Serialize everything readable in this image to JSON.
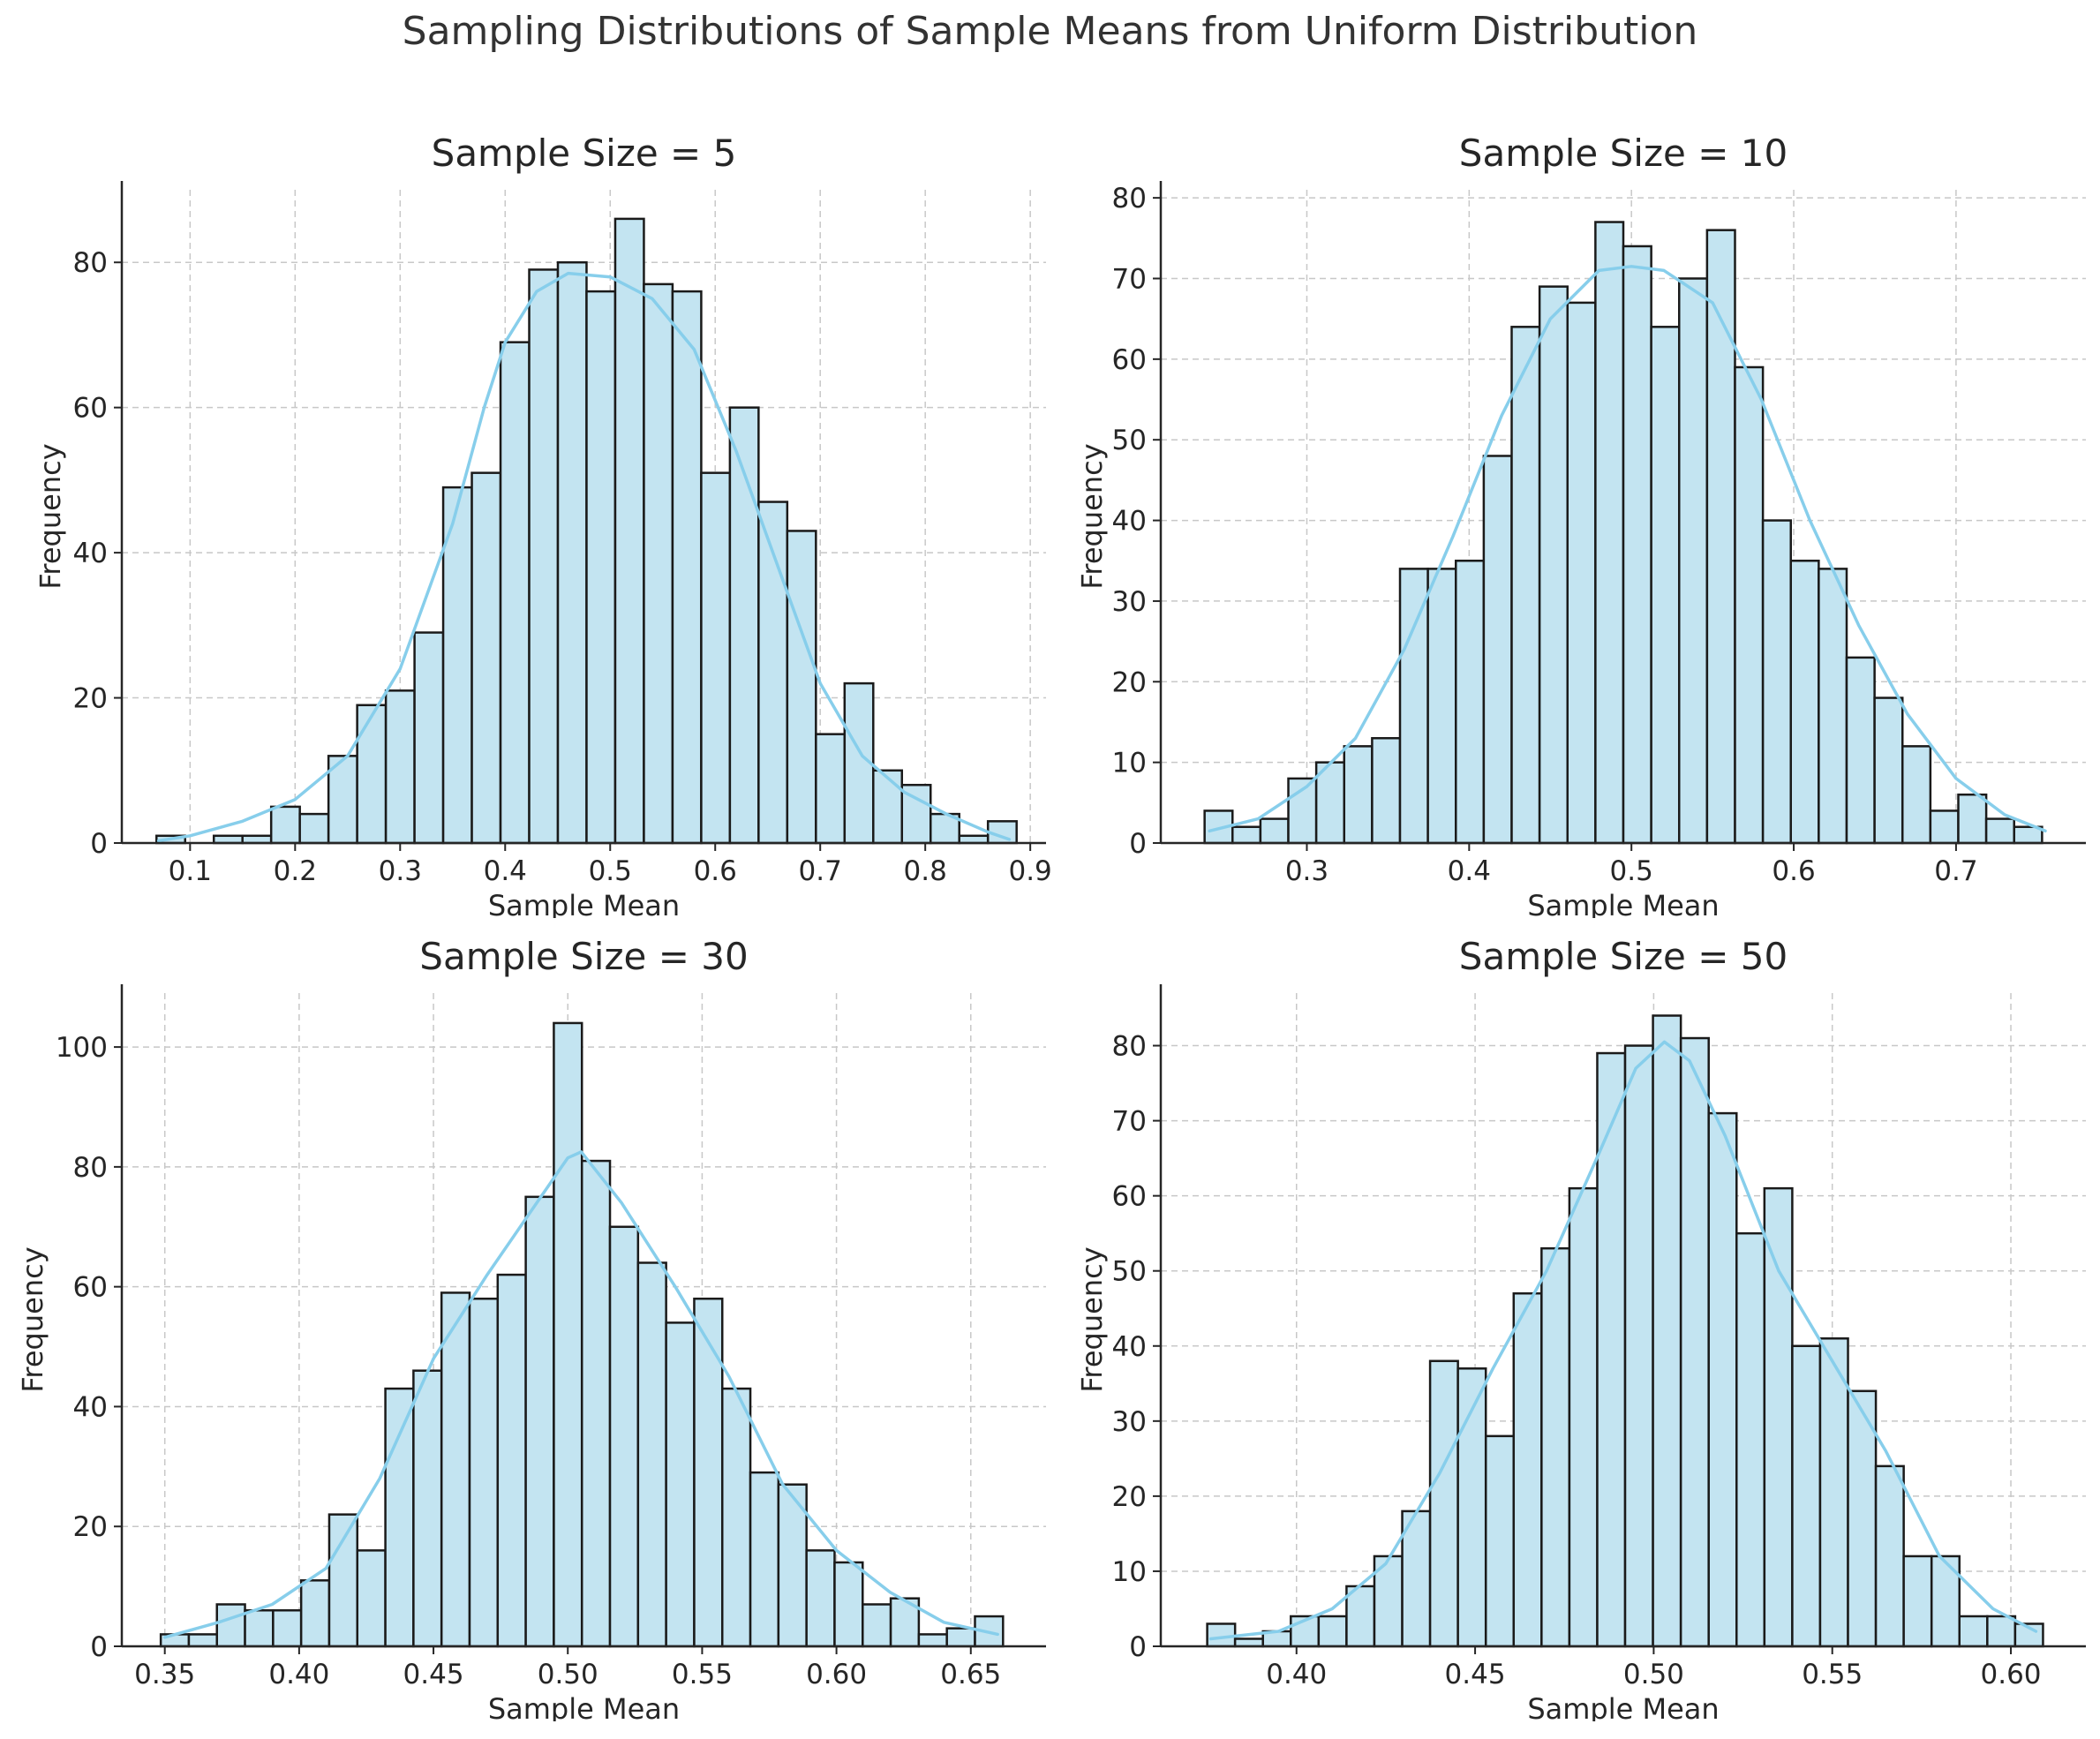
{
  "suptitle": "Sampling Distributions of Sample Means from Uniform Distribution",
  "colors": {
    "bar_fill": "#c3e4f1",
    "bar_edge": "#1a1a1a",
    "kde": "#87ceeb",
    "grid": "#c8c8c8",
    "axis": "#262626"
  },
  "chart_data": [
    {
      "type": "bar",
      "title": "Sample Size = 5",
      "xlabel": "Sample Mean",
      "ylabel": "Frequency",
      "xlim": [
        0.035,
        0.915
      ],
      "ylim": [
        0,
        90
      ],
      "xticks": [
        "0.1",
        "0.2",
        "0.3",
        "0.4",
        "0.5",
        "0.6",
        "0.7",
        "0.8",
        "0.9"
      ],
      "yticks": [
        "0",
        "20",
        "40",
        "60",
        "80"
      ],
      "bin_start": 0.068,
      "bin_width": 0.0273,
      "values": [
        1,
        0,
        1,
        1,
        5,
        4,
        12,
        19,
        21,
        29,
        49,
        51,
        69,
        79,
        80,
        76,
        86,
        77,
        76,
        51,
        60,
        47,
        43,
        15,
        22,
        10,
        8,
        4,
        1,
        3
      ],
      "kde": {
        "x": [
          0.07,
          0.1,
          0.15,
          0.2,
          0.25,
          0.3,
          0.35,
          0.38,
          0.4,
          0.43,
          0.46,
          0.5,
          0.54,
          0.58,
          0.62,
          0.66,
          0.7,
          0.74,
          0.78,
          0.82,
          0.86,
          0.88
        ],
        "y": [
          0.3,
          1,
          3,
          6,
          12,
          24,
          44,
          60,
          69,
          76,
          78.5,
          78,
          75,
          68,
          54,
          38,
          22,
          12,
          7,
          4,
          1.5,
          0.5
        ]
      },
      "grid": true
    },
    {
      "type": "bar",
      "title": "Sample Size = 10",
      "xlabel": "Sample Mean",
      "ylabel": "Frequency",
      "xlim": [
        0.21,
        0.78
      ],
      "ylim": [
        0,
        81
      ],
      "xticks": [
        "0.3",
        "0.4",
        "0.5",
        "0.6",
        "0.7"
      ],
      "yticks": [
        "0",
        "10",
        "20",
        "30",
        "40",
        "50",
        "60",
        "70",
        "80"
      ],
      "bin_start": 0.237,
      "bin_width": 0.0172,
      "values": [
        4,
        2,
        3,
        8,
        10,
        12,
        13,
        34,
        34,
        35,
        48,
        64,
        69,
        67,
        77,
        74,
        64,
        70,
        76,
        59,
        40,
        35,
        34,
        23,
        18,
        12,
        4,
        6,
        3,
        2
      ],
      "kde": {
        "x": [
          0.24,
          0.27,
          0.3,
          0.33,
          0.36,
          0.39,
          0.42,
          0.45,
          0.48,
          0.5,
          0.52,
          0.55,
          0.58,
          0.61,
          0.64,
          0.67,
          0.7,
          0.73,
          0.755
        ],
        "y": [
          1.5,
          3,
          7,
          13,
          24,
          38,
          53,
          65,
          71,
          71.5,
          71,
          67,
          55,
          40,
          27,
          16,
          8,
          3.5,
          1.5
        ]
      },
      "grid": true
    },
    {
      "type": "bar",
      "title": "Sample Size = 30",
      "xlabel": "Sample Mean",
      "ylabel": "Frequency",
      "xlim": [
        0.334,
        0.678
      ],
      "ylim": [
        0,
        109
      ],
      "xticks": [
        "0.35",
        "0.40",
        "0.45",
        "0.50",
        "0.55",
        "0.60",
        "0.65"
      ],
      "yticks": [
        "0",
        "20",
        "40",
        "60",
        "80",
        "100"
      ],
      "bin_start": 0.3485,
      "bin_width": 0.01045,
      "values": [
        2,
        2,
        7,
        6,
        6,
        11,
        22,
        16,
        43,
        46,
        59,
        58,
        62,
        75,
        104,
        81,
        70,
        64,
        54,
        58,
        43,
        29,
        27,
        16,
        14,
        7,
        8,
        2,
        3,
        5
      ],
      "kde": {
        "x": [
          0.35,
          0.37,
          0.39,
          0.41,
          0.43,
          0.45,
          0.47,
          0.49,
          0.5,
          0.505,
          0.52,
          0.54,
          0.56,
          0.58,
          0.6,
          0.62,
          0.64,
          0.66
        ],
        "y": [
          1.5,
          4,
          7,
          13,
          28,
          48,
          62,
          75,
          81.5,
          82.5,
          74,
          60,
          45,
          27,
          16,
          9,
          4,
          2
        ]
      },
      "grid": true
    },
    {
      "type": "bar",
      "title": "Sample Size = 50",
      "xlabel": "Sample Mean",
      "ylabel": "Frequency",
      "xlim": [
        0.362,
        0.621
      ],
      "ylim": [
        0,
        87
      ],
      "xticks": [
        "0.40",
        "0.45",
        "0.50",
        "0.55",
        "0.60"
      ],
      "yticks": [
        "0",
        "10",
        "20",
        "30",
        "40",
        "50",
        "60",
        "70",
        "80"
      ],
      "bin_start": 0.375,
      "bin_width": 0.0078,
      "values": [
        3,
        1,
        2,
        4,
        4,
        8,
        12,
        18,
        38,
        37,
        28,
        47,
        53,
        61,
        79,
        80,
        84,
        81,
        71,
        55,
        61,
        40,
        41,
        34,
        24,
        12,
        12,
        4,
        4,
        3
      ],
      "kde": {
        "x": [
          0.376,
          0.395,
          0.41,
          0.425,
          0.44,
          0.455,
          0.47,
          0.485,
          0.495,
          0.503,
          0.51,
          0.52,
          0.535,
          0.55,
          0.565,
          0.58,
          0.595,
          0.607
        ],
        "y": [
          1,
          2,
          5,
          11,
          23,
          37,
          50,
          66,
          77,
          80.5,
          78,
          68,
          50,
          38,
          26,
          12,
          5,
          2
        ]
      },
      "grid": true
    }
  ]
}
